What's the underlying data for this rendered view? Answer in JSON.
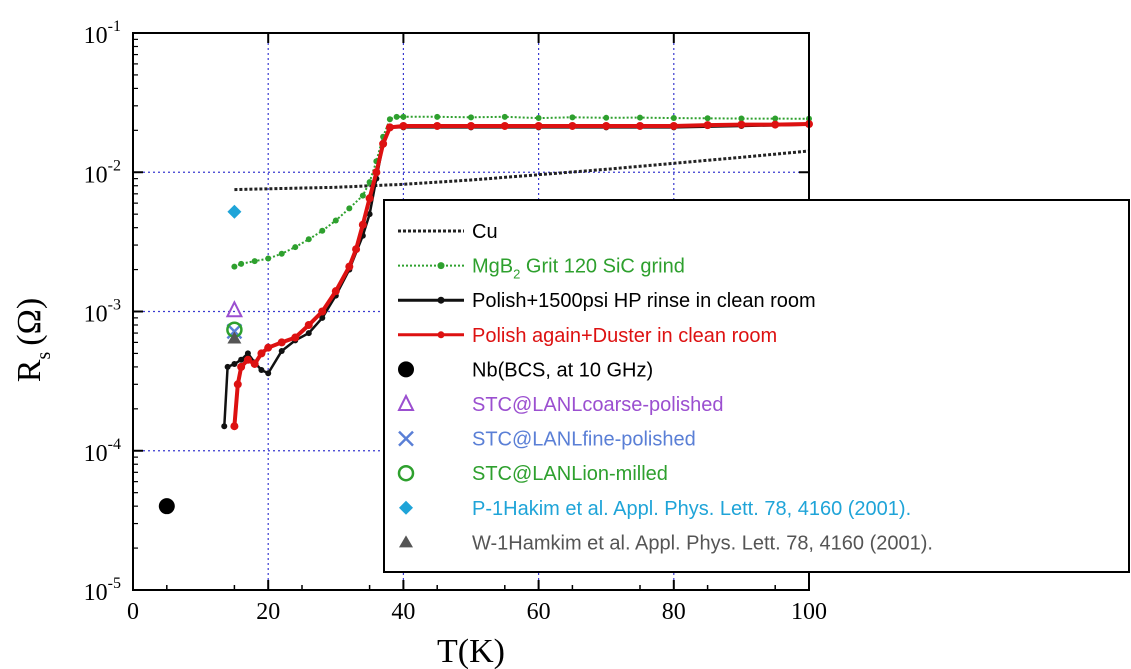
{
  "chart_data": {
    "type": "scatter",
    "title": "",
    "xlabel": "T(K)",
    "ylabel": "R",
    "ylabel_sub": "s",
    "ylabel_unit": "(Ω)",
    "xlim": [
      0,
      100
    ],
    "ylim_exp": [
      -5,
      -1
    ],
    "yscale": "log",
    "grid": "dotted, major ticks",
    "legend_position": "lower-right",
    "x_ticks": [
      {
        "value": 0,
        "label": "0"
      },
      {
        "value": 20,
        "label": "20"
      },
      {
        "value": 40,
        "label": "40"
      },
      {
        "value": 60,
        "label": "60"
      },
      {
        "value": 80,
        "label": "80"
      },
      {
        "value": 100,
        "label": "100"
      }
    ],
    "y_ticks": [
      {
        "exp": -5,
        "base": "10",
        "sup": "-5"
      },
      {
        "exp": -4,
        "base": "10",
        "sup": "-4"
      },
      {
        "exp": -3,
        "base": "10",
        "sup": "-3"
      },
      {
        "exp": -2,
        "base": "10",
        "sup": "-2"
      },
      {
        "exp": -1,
        "base": "10",
        "sup": "-1"
      }
    ],
    "series": [
      {
        "name": "Cu",
        "color": "#222222",
        "style": "dash-line",
        "x": [
          15,
          20,
          30,
          40,
          50,
          60,
          70,
          80,
          90,
          100
        ],
        "y": [
          0.0075,
          0.0076,
          0.0078,
          0.0082,
          0.0088,
          0.0096,
          0.0105,
          0.0116,
          0.0128,
          0.0142
        ]
      },
      {
        "name_parts": [
          "MgB",
          "2",
          " Grit 120 SiC grind"
        ],
        "color": "#2ea02e",
        "style": "dotted-line-markers",
        "x": [
          15,
          16,
          18,
          20,
          22,
          24,
          26,
          28,
          30,
          32,
          34,
          35,
          36,
          37,
          38,
          39,
          40,
          45,
          50,
          55,
          60,
          65,
          70,
          75,
          80,
          85,
          90,
          95,
          100
        ],
        "y": [
          0.0021,
          0.0022,
          0.0023,
          0.0024,
          0.0026,
          0.0029,
          0.0033,
          0.0038,
          0.0045,
          0.0055,
          0.0068,
          0.0085,
          0.012,
          0.018,
          0.024,
          0.025,
          0.025,
          0.025,
          0.0248,
          0.025,
          0.0245,
          0.0248,
          0.0246,
          0.0247,
          0.0245,
          0.0244,
          0.0243,
          0.0243,
          0.0242
        ]
      },
      {
        "name": "Polish+1500psi HP rinse in clean room",
        "color": "#111111",
        "style": "solid-line-markers",
        "x": [
          13.5,
          14,
          15,
          16,
          17,
          18,
          19,
          20,
          22,
          24,
          26,
          28,
          30,
          32,
          34,
          35,
          36,
          37,
          38,
          40,
          50,
          60,
          70,
          80,
          90,
          100
        ],
        "y": [
          0.00015,
          0.0004,
          0.00042,
          0.00045,
          0.0005,
          0.00043,
          0.00038,
          0.00036,
          0.00052,
          0.00062,
          0.0007,
          0.0009,
          0.0013,
          0.002,
          0.0035,
          0.005,
          0.009,
          0.016,
          0.021,
          0.021,
          0.021,
          0.021,
          0.021,
          0.021,
          0.0215,
          0.022
        ]
      },
      {
        "name": "Polish again+Duster in clean room",
        "color": "#dd1111",
        "style": "solid-line-markers",
        "x": [
          15,
          15.5,
          16,
          17,
          18,
          19,
          20,
          22,
          24,
          26,
          28,
          30,
          32,
          33,
          34,
          35,
          36,
          37,
          38,
          40,
          45,
          50,
          55,
          60,
          65,
          70,
          75,
          80,
          85,
          90,
          95,
          100
        ],
        "y": [
          0.00015,
          0.0003,
          0.0004,
          0.00045,
          0.00042,
          0.0005,
          0.00055,
          0.0006,
          0.00065,
          0.0008,
          0.001,
          0.0014,
          0.0021,
          0.0028,
          0.0042,
          0.0065,
          0.01,
          0.016,
          0.021,
          0.0215,
          0.0215,
          0.0215,
          0.0215,
          0.0215,
          0.0215,
          0.0215,
          0.0215,
          0.0215,
          0.0218,
          0.022,
          0.022,
          0.0222
        ]
      },
      {
        "name": "Nb(BCS, at 10 GHz)",
        "color": "#000000",
        "marker": "filled-circle",
        "x": [
          5
        ],
        "y": [
          4e-05
        ]
      },
      {
        "name": "STC@LANLcoarse-polished",
        "color": "#9b4fd0",
        "marker": "open-triangle",
        "x": [
          15
        ],
        "y": [
          0.00102
        ]
      },
      {
        "name": "STC@LANLfine-polished",
        "color": "#5a7fd6",
        "marker": "x",
        "x": [
          15
        ],
        "y": [
          0.00072
        ]
      },
      {
        "name": "STC@LANLion-milled",
        "color": "#2ea02e",
        "marker": "open-circle",
        "x": [
          15
        ],
        "y": [
          0.00074
        ]
      },
      {
        "name": "P-1Hakim et al. Appl. Phys. Lett. 78, 4160 (2001).",
        "color": "#1fa4d8",
        "marker": "filled-diamond",
        "x": [
          15
        ],
        "y": [
          0.0052
        ]
      },
      {
        "name": "W-1Hamkim et al. Appl. Phys. Lett. 78, 4160 (2001).",
        "color": "#555555",
        "marker": "filled-triangle",
        "x": [
          15
        ],
        "y": [
          0.00064
        ]
      }
    ]
  }
}
